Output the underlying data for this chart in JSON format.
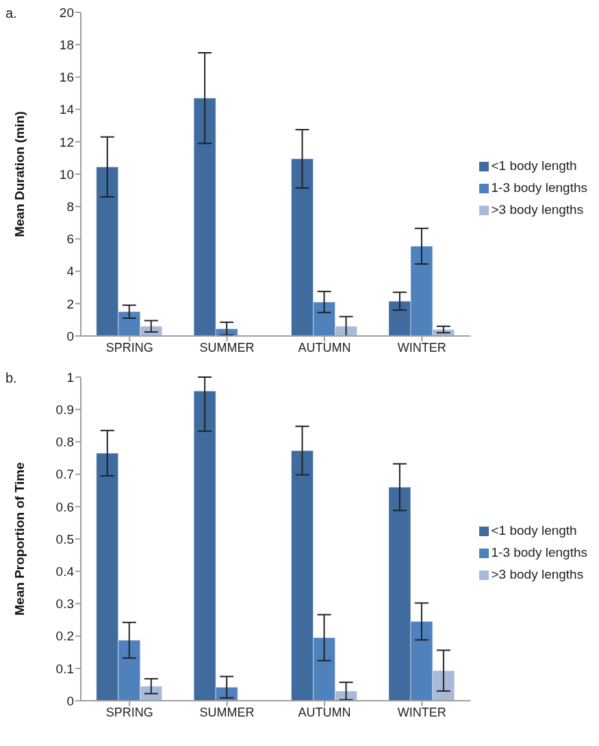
{
  "chart_data": [
    {
      "type": "bar",
      "title": "a.",
      "ylabel": "Mean Duration (min)",
      "categories": [
        "SPRING",
        "SUMMER",
        "AUTUMN",
        "WINTER"
      ],
      "ylim": [
        0,
        20
      ],
      "yticks": [
        0,
        2,
        4,
        6,
        8,
        10,
        12,
        14,
        16,
        18,
        20
      ],
      "grid": false,
      "legend": "right",
      "series": [
        {
          "name": "<1 body length",
          "color": "#3f6b9e",
          "values": [
            10.45,
            14.7,
            10.95,
            2.15
          ],
          "errors": [
            1.85,
            2.8,
            1.8,
            0.55
          ]
        },
        {
          "name": "1-3 body lengths",
          "color": "#4f81bd",
          "values": [
            1.5,
            0.45,
            2.1,
            5.55
          ],
          "errors": [
            0.4,
            0.4,
            0.65,
            1.1
          ]
        },
        {
          "name": ">3 body lengths",
          "color": "#a9bad9",
          "values": [
            0.6,
            null,
            0.6,
            0.4
          ],
          "errors": [
            0.35,
            null,
            0.6,
            0.2
          ]
        }
      ]
    },
    {
      "type": "bar",
      "title": "b.",
      "ylabel": "Mean Proportion of Time",
      "categories": [
        "SPRING",
        "SUMMER",
        "AUTUMN",
        "WINTER"
      ],
      "ylim": [
        0,
        1
      ],
      "yticks": [
        0,
        0.1,
        0.2,
        0.3,
        0.4,
        0.5,
        0.6,
        0.7,
        0.8,
        0.9,
        1
      ],
      "grid": false,
      "legend": "right",
      "series": [
        {
          "name": "<1 body length",
          "color": "#3f6b9e",
          "values": [
            0.765,
            0.957,
            0.773,
            0.66
          ],
          "errors": [
            0.07,
            [
              0.833,
              1
            ],
            0.075,
            0.072
          ]
        },
        {
          "name": "1-3 body lengths",
          "color": "#4f81bd",
          "values": [
            0.187,
            0.042,
            0.195,
            0.245
          ],
          "errors": [
            0.055,
            0.033,
            0.071,
            0.057
          ]
        },
        {
          "name": ">3 body lengths",
          "color": "#a9bad9",
          "values": [
            0.045,
            null,
            0.03,
            0.093
          ],
          "errors": [
            0.023,
            null,
            0.027,
            0.063
          ]
        }
      ]
    }
  ]
}
